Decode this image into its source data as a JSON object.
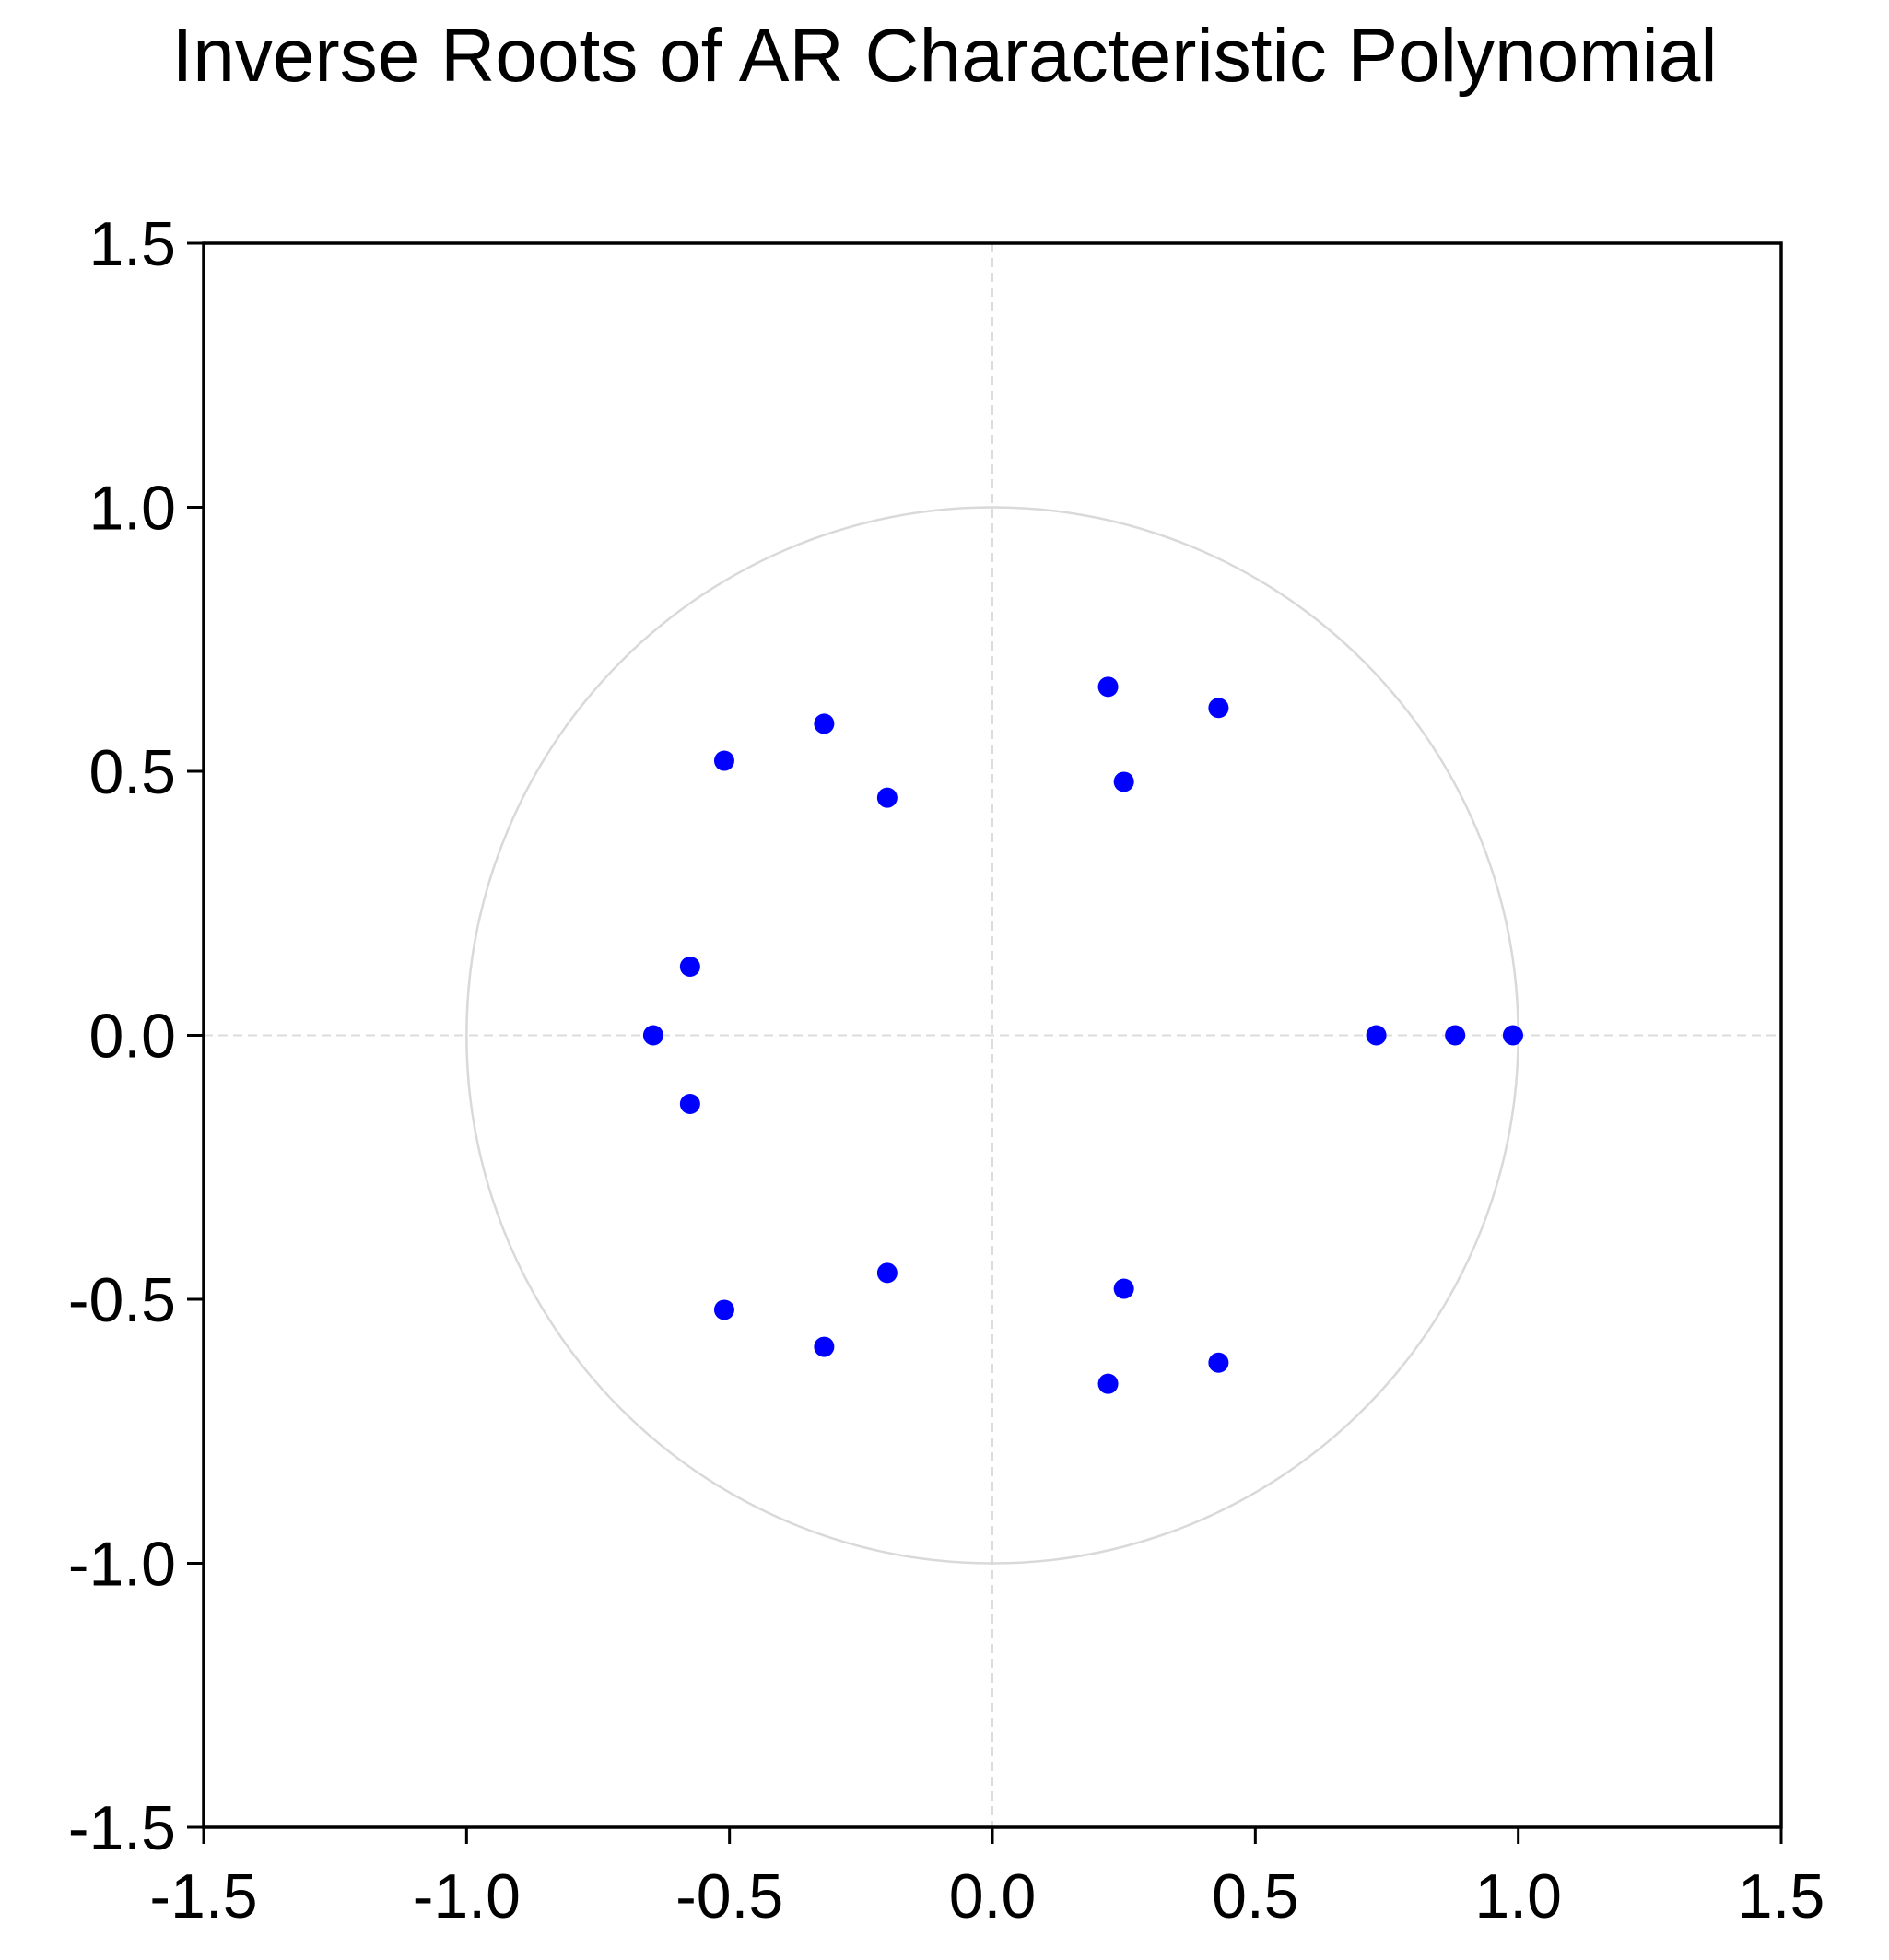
{
  "chart_data": {
    "type": "scatter",
    "title": "Inverse Roots of AR Characteristic Polynomial",
    "xlabel": "",
    "ylabel": "",
    "xlim": [
      -1.5,
      1.5
    ],
    "ylim": [
      -1.5,
      1.5
    ],
    "x_ticks": [
      "-1.5",
      "-1.0",
      "-0.5",
      "0.0",
      "0.5",
      "1.0",
      "1.5"
    ],
    "y_ticks": [
      "1.5",
      "1.0",
      "0.5",
      "0.0",
      "-0.5",
      "-1.0",
      "-1.5"
    ],
    "unit_circle": true,
    "zero_lines": "dashed",
    "grid": false,
    "marker_color": "#0000ff",
    "circle_color": "#d9d9d9",
    "points": [
      {
        "x": -0.51,
        "y": 0.52
      },
      {
        "x": -0.51,
        "y": -0.52
      },
      {
        "x": -0.32,
        "y": 0.59
      },
      {
        "x": -0.32,
        "y": -0.59
      },
      {
        "x": -0.2,
        "y": 0.45
      },
      {
        "x": -0.2,
        "y": -0.45
      },
      {
        "x": 0.22,
        "y": 0.66
      },
      {
        "x": 0.22,
        "y": -0.66
      },
      {
        "x": 0.43,
        "y": 0.62
      },
      {
        "x": 0.43,
        "y": -0.62
      },
      {
        "x": 0.25,
        "y": 0.48
      },
      {
        "x": 0.25,
        "y": -0.48
      },
      {
        "x": -0.575,
        "y": 0.13
      },
      {
        "x": -0.575,
        "y": -0.13
      },
      {
        "x": -0.645,
        "y": 0.0
      },
      {
        "x": 0.73,
        "y": 0.0
      },
      {
        "x": 0.88,
        "y": 0.0
      },
      {
        "x": 0.99,
        "y": 0.0
      }
    ]
  }
}
